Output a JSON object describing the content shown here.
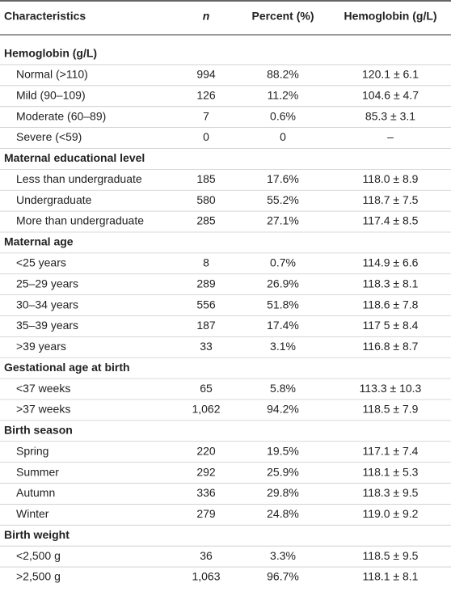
{
  "header": [
    "Characteristics",
    "n",
    "Percent (%)",
    "Hemoglobin (g/L)"
  ],
  "sections": [
    {
      "title": "Hemoglobin (g/L)",
      "rows": [
        [
          "Normal (>110)",
          "994",
          "88.2%",
          "120.1 ± 6.1"
        ],
        [
          "Mild (90–109)",
          "126",
          "11.2%",
          "104.6 ± 4.7"
        ],
        [
          "Moderate (60–89)",
          "7",
          "0.6%",
          "85.3 ± 3.1"
        ],
        [
          "Severe (<59)",
          "0",
          "0",
          "–"
        ]
      ]
    },
    {
      "title": "Maternal educational level",
      "rows": [
        [
          "Less than undergraduate",
          "185",
          "17.6%",
          "118.0 ± 8.9"
        ],
        [
          "Undergraduate",
          "580",
          "55.2%",
          "118.7 ± 7.5"
        ],
        [
          "More than undergraduate",
          "285",
          "27.1%",
          "117.4 ± 8.5"
        ]
      ]
    },
    {
      "title": "Maternal age",
      "rows": [
        [
          "<25 years",
          "8",
          "0.7%",
          "114.9 ± 6.6"
        ],
        [
          "25–29 years",
          "289",
          "26.9%",
          "118.3 ± 8.1"
        ],
        [
          "30–34 years",
          "556",
          "51.8%",
          "118.6 ± 7.8"
        ],
        [
          "35–39 years",
          "187",
          "17.4%",
          "117 5 ± 8.4"
        ],
        [
          ">39 years",
          "33",
          "3.1%",
          "116.8 ± 8.7"
        ]
      ]
    },
    {
      "title": "Gestational age at birth",
      "rows": [
        [
          "<37 weeks",
          "65",
          "5.8%",
          "113.3 ± 10.3"
        ],
        [
          ">37 weeks",
          "1,062",
          "94.2%",
          "118.5 ± 7.9"
        ]
      ]
    },
    {
      "title": "Birth season",
      "rows": [
        [
          "Spring",
          "220",
          "19.5%",
          "117.1 ± 7.4"
        ],
        [
          "Summer",
          "292",
          "25.9%",
          "118.1 ± 5.3"
        ],
        [
          "Autumn",
          "336",
          "29.8%",
          "118.3 ± 9.5"
        ],
        [
          "Winter",
          "279",
          "24.8%",
          "119.0 ± 9.2"
        ]
      ]
    },
    {
      "title": "Birth weight",
      "rows": [
        [
          "<2,500 g",
          "36",
          "3.3%",
          "118.5 ± 9.5"
        ],
        [
          ">2,500 g",
          "1,063",
          "96.7%",
          "118.1 ± 8.1"
        ]
      ]
    }
  ]
}
